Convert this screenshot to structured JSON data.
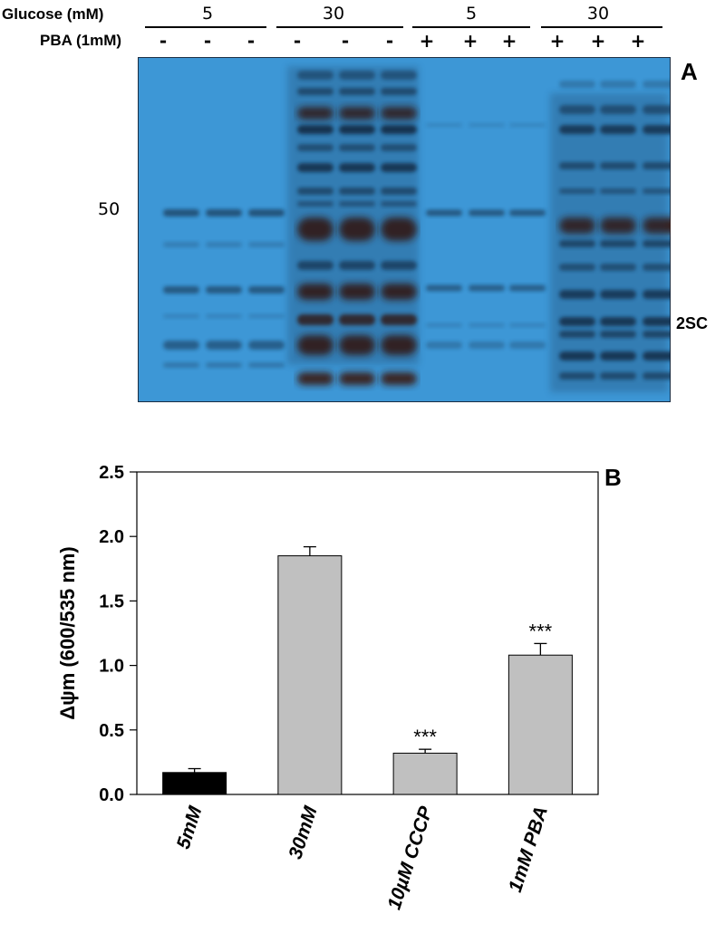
{
  "blot": {
    "row1_label": "Glucose (mM)",
    "row2_label": "PBA (1mM)",
    "groups": [
      {
        "glucose": "5",
        "pba": [
          "-",
          "-",
          "-"
        ]
      },
      {
        "glucose": "30",
        "pba": [
          "-",
          "-",
          "-"
        ]
      },
      {
        "glucose": "5",
        "pba": [
          "+",
          "+",
          "+"
        ]
      },
      {
        "glucose": "30",
        "pba": [
          "+",
          "+",
          "+"
        ]
      }
    ],
    "panel_letter": "A",
    "marker": "50",
    "antibody_label": "2SC"
  },
  "chart_data": {
    "type": "bar",
    "panel_letter": "B",
    "categories": [
      "5mM",
      "30mM",
      "10µM CCCP",
      "1mM PBA"
    ],
    "values": [
      0.17,
      1.85,
      0.32,
      1.08
    ],
    "errors": [
      0.03,
      0.07,
      0.03,
      0.09
    ],
    "significance": [
      "",
      "",
      "***",
      "***"
    ],
    "bar_colors": [
      "#000000",
      "#c0c0c0",
      "#c0c0c0",
      "#c0c0c0"
    ],
    "ylabel": "Δψm (600/535 nm)",
    "xlabel": "",
    "ylim": [
      0,
      2.5
    ],
    "yticks": [
      "0.0",
      "0.5",
      "1.0",
      "1.5",
      "2.0",
      "2.5"
    ],
    "grid": false
  }
}
